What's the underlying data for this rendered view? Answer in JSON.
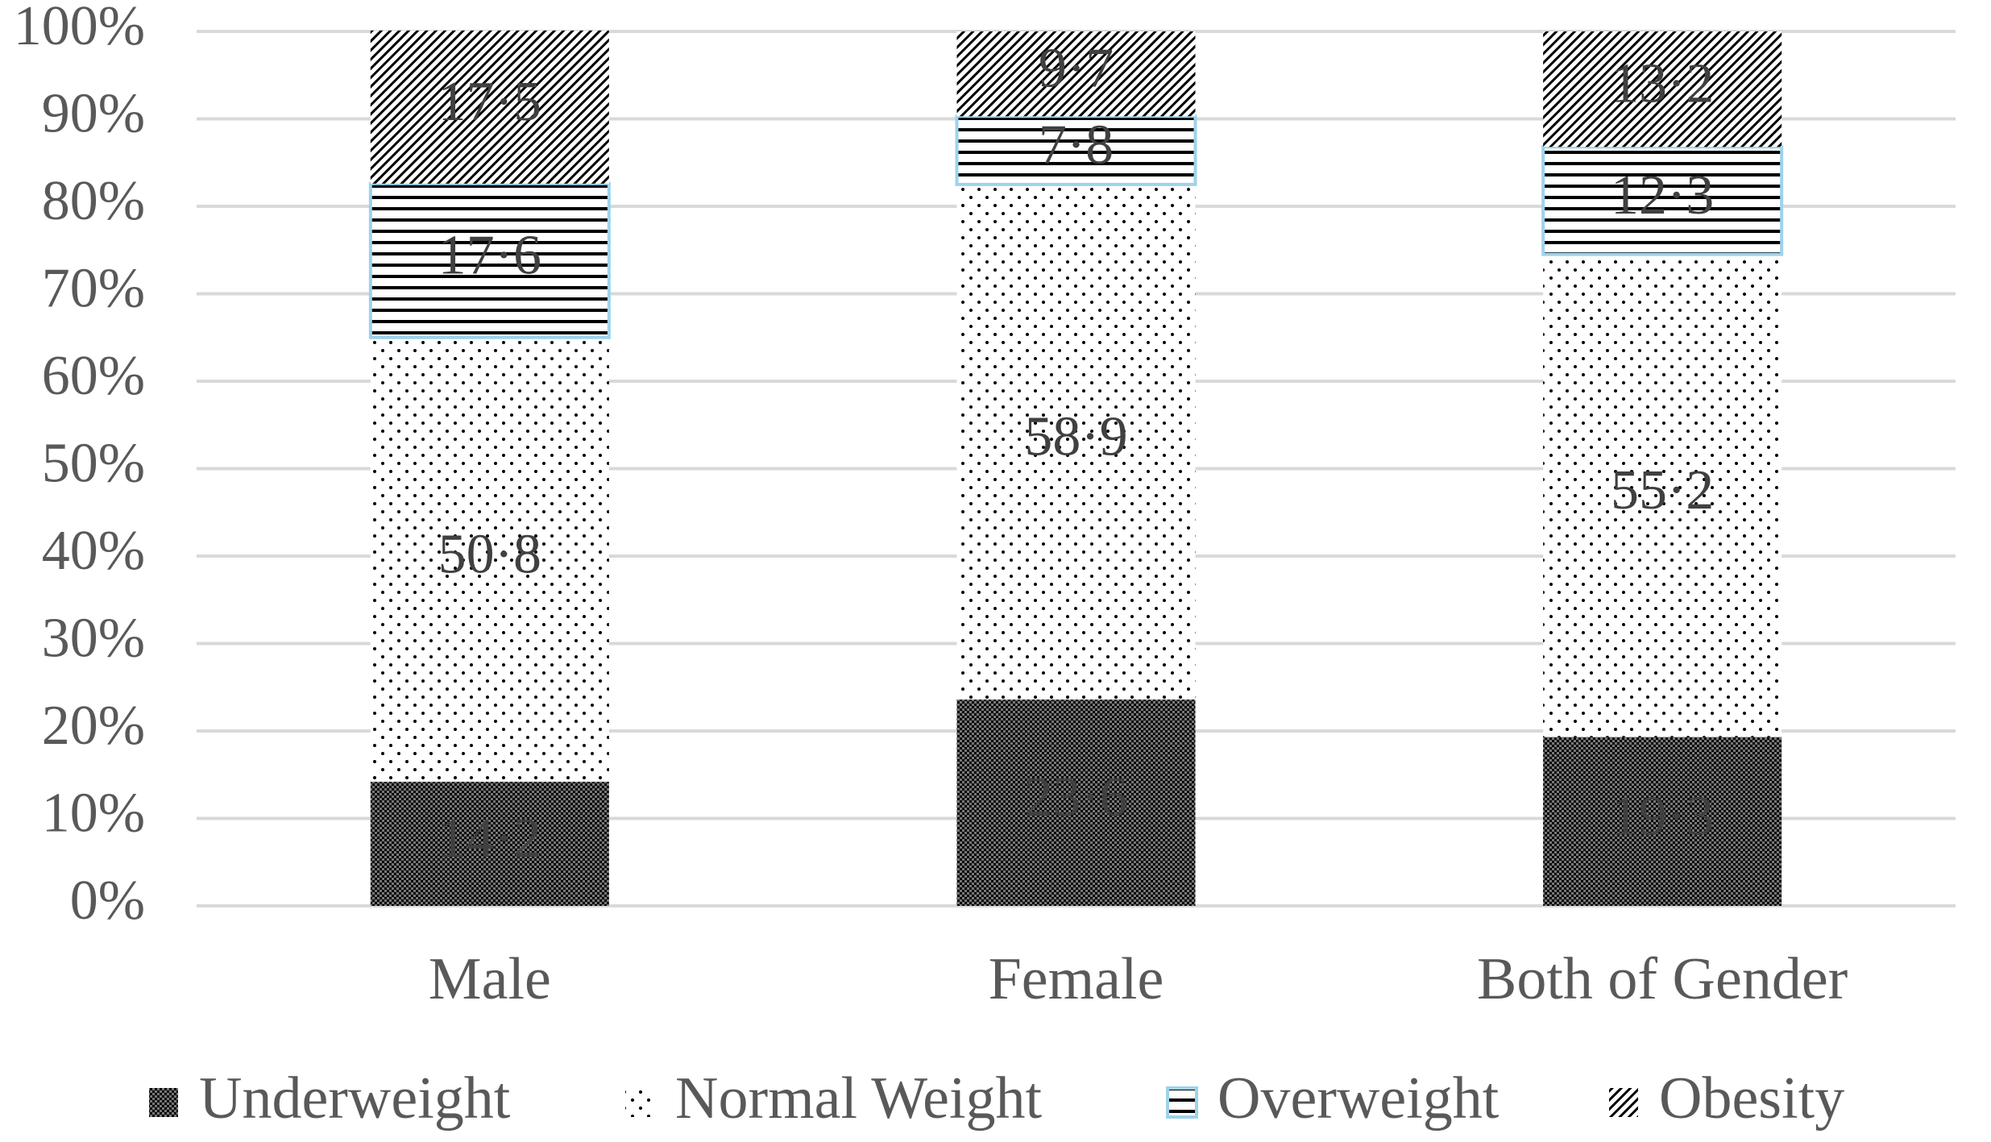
{
  "chart_data": {
    "type": "stacked_bar",
    "categories": [
      "Male",
      "Female",
      "Both of Gender"
    ],
    "series": [
      {
        "name": "Underweight",
        "color": "#000000",
        "pattern": "checker",
        "values": [
          14.2,
          23.6,
          19.3
        ],
        "value_labels": [
          "14·2",
          "23·6",
          "19·3"
        ]
      },
      {
        "name": "Normal Weight",
        "color": "#000000",
        "pattern": "dots",
        "values": [
          50.8,
          58.9,
          55.2
        ],
        "value_labels": [
          "50·8",
          "58·9",
          "55·2"
        ]
      },
      {
        "name": "Overweight",
        "color": "#000000",
        "edgecolor": "#9dd3ec",
        "pattern": "hlines",
        "values": [
          17.6,
          7.8,
          12.3
        ],
        "value_labels": [
          "17·6",
          "7·8",
          "12·3"
        ]
      },
      {
        "name": "Obesity",
        "color": "#000000",
        "pattern": "diagonal",
        "values": [
          17.5,
          9.7,
          13.2
        ],
        "value_labels": [
          "17·5",
          "9·7",
          "13·2"
        ]
      }
    ],
    "ylim": [
      0,
      100
    ],
    "yticks": [
      {
        "value": 0,
        "label": "0%"
      },
      {
        "value": 10,
        "label": "10%"
      },
      {
        "value": 20,
        "label": "20%"
      },
      {
        "value": 30,
        "label": "30%"
      },
      {
        "value": 40,
        "label": "40%"
      },
      {
        "value": 50,
        "label": "50%"
      },
      {
        "value": 60,
        "label": "60%"
      },
      {
        "value": 70,
        "label": "70%"
      },
      {
        "value": 80,
        "label": "80%"
      },
      {
        "value": 90,
        "label": "90%"
      },
      {
        "value": 100,
        "label": "100%"
      }
    ],
    "grid": true,
    "legend": "bottom"
  }
}
